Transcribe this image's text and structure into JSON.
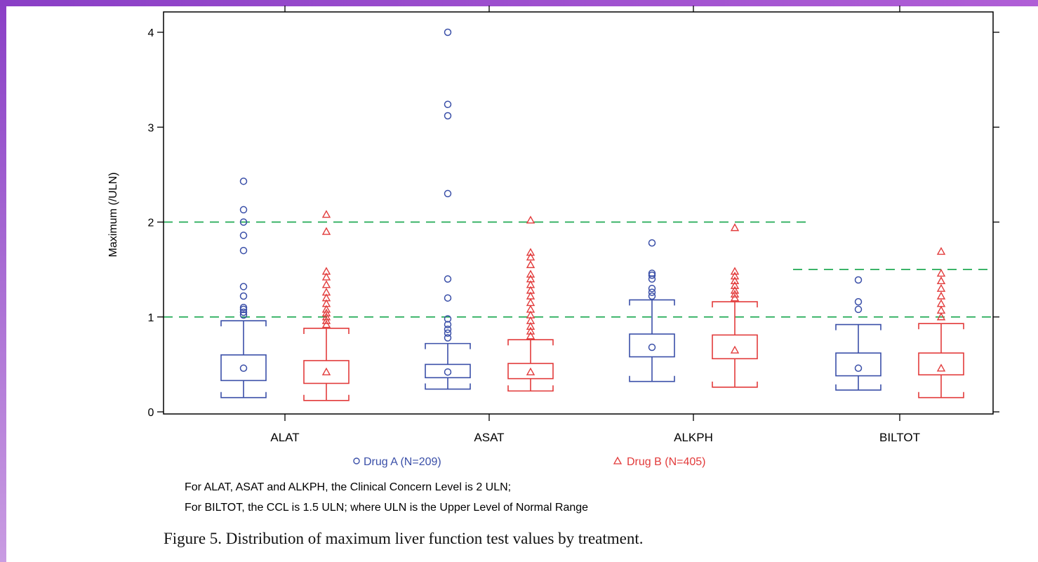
{
  "chart_data": {
    "type": "box",
    "ylabel": "Maximum (/ULN)",
    "ylim": [
      0,
      4.3
    ],
    "yticks": [
      0,
      1,
      2,
      3,
      4
    ],
    "categories": [
      "ALAT",
      "ASAT",
      "ALKPH",
      "BILTOT"
    ],
    "reference_lines": [
      {
        "y": 1,
        "extent": "full",
        "color": "#22aa55"
      },
      {
        "y": 2,
        "extent": "ALAT-ALKPH",
        "color": "#22aa55"
      },
      {
        "y": 1.5,
        "extent": "BILTOT",
        "color": "#22aa55"
      }
    ],
    "series": [
      {
        "name": "Drug A (N=209)",
        "marker": "circle",
        "color": "#3a4fa8",
        "boxes": [
          {
            "category": "ALAT",
            "whisker_low": 0.15,
            "q1": 0.33,
            "median": 0.46,
            "q3": 0.6,
            "whisker_high": 0.96,
            "outliers": [
              1.02,
              1.05,
              1.08,
              1.1,
              1.22,
              1.32,
              1.7,
              1.86,
              2.0,
              2.13,
              2.43
            ]
          },
          {
            "category": "ASAT",
            "whisker_low": 0.24,
            "q1": 0.36,
            "median": 0.42,
            "q3": 0.5,
            "whisker_high": 0.72,
            "outliers": [
              0.78,
              0.83,
              0.87,
              0.92,
              0.98,
              1.2,
              1.4,
              2.3,
              3.12,
              3.24,
              4.0
            ]
          },
          {
            "category": "ALKPH",
            "whisker_low": 0.32,
            "q1": 0.58,
            "median": 0.68,
            "q3": 0.82,
            "whisker_high": 1.18,
            "outliers": [
              1.22,
              1.26,
              1.3,
              1.4,
              1.44,
              1.46,
              1.78
            ]
          },
          {
            "category": "BILTOT",
            "whisker_low": 0.23,
            "q1": 0.38,
            "median": 0.46,
            "q3": 0.62,
            "whisker_high": 0.92,
            "outliers": [
              1.08,
              1.16,
              1.39
            ]
          }
        ]
      },
      {
        "name": "Drug B (N=405)",
        "marker": "triangle",
        "color": "#e23b3b",
        "boxes": [
          {
            "category": "ALAT",
            "whisker_low": 0.12,
            "q1": 0.3,
            "median": 0.42,
            "q3": 0.54,
            "whisker_high": 0.88,
            "outliers": [
              0.92,
              0.96,
              1.0,
              1.04,
              1.08,
              1.14,
              1.2,
              1.26,
              1.34,
              1.42,
              1.48,
              1.9,
              2.08
            ]
          },
          {
            "category": "ASAT",
            "whisker_low": 0.22,
            "q1": 0.35,
            "median": 0.42,
            "q3": 0.51,
            "whisker_high": 0.76,
            "outliers": [
              0.8,
              0.85,
              0.9,
              0.96,
              1.02,
              1.08,
              1.15,
              1.22,
              1.28,
              1.34,
              1.4,
              1.45,
              1.55,
              1.63,
              1.68,
              2.02
            ]
          },
          {
            "category": "ALKPH",
            "whisker_low": 0.26,
            "q1": 0.56,
            "median": 0.65,
            "q3": 0.81,
            "whisker_high": 1.16,
            "outliers": [
              1.2,
              1.24,
              1.28,
              1.33,
              1.38,
              1.43,
              1.48,
              1.94
            ]
          },
          {
            "category": "BILTOT",
            "whisker_low": 0.15,
            "q1": 0.39,
            "median": 0.46,
            "q3": 0.62,
            "whisker_high": 0.93,
            "outliers": [
              1.0,
              1.07,
              1.14,
              1.22,
              1.3,
              1.38,
              1.46,
              1.69
            ]
          }
        ]
      }
    ],
    "legend": {
      "placement": "bottom"
    }
  },
  "footnotes": {
    "line1": "For ALAT, ASAT and ALKPH, the Clinical Concern Level is 2 ULN;",
    "line2": "For BILTOT, the CCL is 1.5 ULN; where ULN is the Upper Level of Normal Range"
  },
  "caption": "Figure 5.  Distribution of maximum liver function test values by treatment."
}
